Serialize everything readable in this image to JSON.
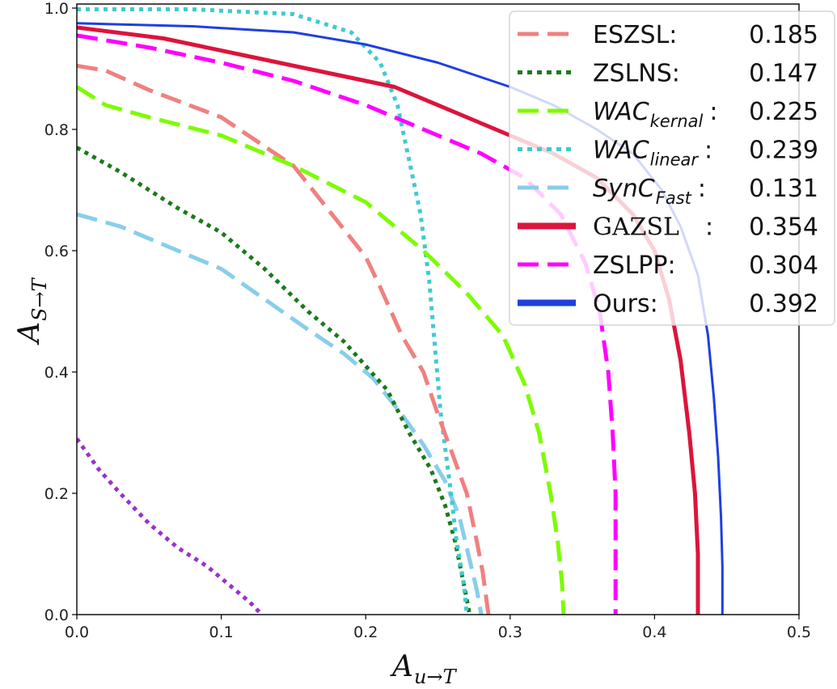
{
  "chart_data": {
    "type": "line",
    "title": "",
    "xlabel": {
      "main": "A",
      "sub": "u→T"
    },
    "ylabel": {
      "main": "A",
      "sub": "S→T"
    },
    "xlim": [
      0,
      0.5
    ],
    "ylim": [
      0,
      1.0
    ],
    "x_ticks": [
      "0.0",
      "0.1",
      "0.2",
      "0.3",
      "0.4",
      "0.5"
    ],
    "y_ticks": [
      "0.0",
      "0.2",
      "0.4",
      "0.6",
      "0.8",
      "1.0"
    ],
    "grid": false,
    "legend_position": "top-right",
    "series": [
      {
        "id": "eszsl",
        "name": "ESZSL:",
        "legend_main": "ESZSL:",
        "legend_sub": "",
        "legend_after": "",
        "score": "0.185",
        "color": "#f08080",
        "style": "dashed",
        "in_legend": true,
        "points": [
          [
            0.0,
            0.905
          ],
          [
            0.02,
            0.897
          ],
          [
            0.05,
            0.865
          ],
          [
            0.1,
            0.82
          ],
          [
            0.15,
            0.74
          ],
          [
            0.2,
            0.59
          ],
          [
            0.21,
            0.54
          ],
          [
            0.225,
            0.46
          ],
          [
            0.24,
            0.4
          ],
          [
            0.25,
            0.33
          ],
          [
            0.26,
            0.265
          ],
          [
            0.27,
            0.2
          ],
          [
            0.277,
            0.12
          ],
          [
            0.281,
            0.07
          ],
          [
            0.285,
            0.0
          ]
        ]
      },
      {
        "id": "zslns",
        "name": "ZSLNS:",
        "legend_main": "ZSLNS:",
        "legend_sub": "",
        "legend_after": "",
        "score": "0.147",
        "color": "#1a7a1a",
        "style": "dotted",
        "in_legend": true,
        "points": [
          [
            0.0,
            0.77
          ],
          [
            0.03,
            0.73
          ],
          [
            0.07,
            0.67
          ],
          [
            0.1,
            0.63
          ],
          [
            0.13,
            0.57
          ],
          [
            0.16,
            0.5
          ],
          [
            0.185,
            0.45
          ],
          [
            0.2,
            0.41
          ],
          [
            0.215,
            0.37
          ],
          [
            0.23,
            0.3
          ],
          [
            0.245,
            0.24
          ],
          [
            0.255,
            0.18
          ],
          [
            0.262,
            0.12
          ],
          [
            0.268,
            0.05
          ],
          [
            0.272,
            0.0
          ]
        ]
      },
      {
        "id": "wac-kernal",
        "name": "WAC kernal",
        "legend_main": "WAC",
        "legend_sub": "kernal",
        "legend_after": ":",
        "score": "0.225",
        "color": "#7cfc00",
        "style": "dashed",
        "in_legend": true,
        "points": [
          [
            0.0,
            0.87
          ],
          [
            0.02,
            0.84
          ],
          [
            0.05,
            0.82
          ],
          [
            0.1,
            0.79
          ],
          [
            0.15,
            0.74
          ],
          [
            0.2,
            0.68
          ],
          [
            0.24,
            0.6
          ],
          [
            0.27,
            0.53
          ],
          [
            0.295,
            0.46
          ],
          [
            0.31,
            0.38
          ],
          [
            0.32,
            0.3
          ],
          [
            0.328,
            0.2
          ],
          [
            0.333,
            0.12
          ],
          [
            0.336,
            0.05
          ],
          [
            0.337,
            0.0
          ]
        ]
      },
      {
        "id": "wac-linear",
        "name": "WAC linear",
        "legend_main": "WAC",
        "legend_sub": "linear",
        "legend_after": ":",
        "score": "0.239",
        "color": "#3ecbd0",
        "style": "dotted",
        "in_legend": true,
        "points": [
          [
            0.0,
            0.998
          ],
          [
            0.08,
            0.998
          ],
          [
            0.15,
            0.99
          ],
          [
            0.19,
            0.96
          ],
          [
            0.21,
            0.91
          ],
          [
            0.222,
            0.84
          ],
          [
            0.23,
            0.75
          ],
          [
            0.238,
            0.66
          ],
          [
            0.244,
            0.55
          ],
          [
            0.248,
            0.44
          ],
          [
            0.252,
            0.33
          ],
          [
            0.258,
            0.22
          ],
          [
            0.263,
            0.12
          ],
          [
            0.268,
            0.05
          ],
          [
            0.27,
            0.0
          ]
        ]
      },
      {
        "id": "sync-fast",
        "name": "SynC Fast",
        "legend_main": "SynC",
        "legend_sub": "Fast",
        "legend_after": ":",
        "score": "0.131",
        "color": "#87ceeb",
        "style": "dashed",
        "in_legend": true,
        "points": [
          [
            0.0,
            0.66
          ],
          [
            0.03,
            0.64
          ],
          [
            0.07,
            0.6
          ],
          [
            0.1,
            0.57
          ],
          [
            0.13,
            0.52
          ],
          [
            0.16,
            0.47
          ],
          [
            0.185,
            0.43
          ],
          [
            0.205,
            0.39
          ],
          [
            0.225,
            0.33
          ],
          [
            0.24,
            0.28
          ],
          [
            0.255,
            0.22
          ],
          [
            0.265,
            0.16
          ],
          [
            0.272,
            0.09
          ],
          [
            0.277,
            0.04
          ],
          [
            0.28,
            0.0
          ]
        ]
      },
      {
        "id": "gazsl",
        "name": "GAZSL",
        "legend_main": "GAZSL",
        "legend_sub": "",
        "legend_after": ":",
        "score": "0.354",
        "color": "#dc143c",
        "style": "solid",
        "in_legend": true,
        "points": [
          [
            0.0,
            0.968
          ],
          [
            0.06,
            0.95
          ],
          [
            0.12,
            0.92
          ],
          [
            0.18,
            0.89
          ],
          [
            0.22,
            0.87
          ],
          [
            0.26,
            0.83
          ],
          [
            0.3,
            0.79
          ],
          [
            0.33,
            0.76
          ],
          [
            0.36,
            0.72
          ],
          [
            0.385,
            0.66
          ],
          [
            0.4,
            0.6
          ],
          [
            0.41,
            0.52
          ],
          [
            0.418,
            0.42
          ],
          [
            0.424,
            0.3
          ],
          [
            0.428,
            0.2
          ],
          [
            0.43,
            0.1
          ],
          [
            0.43,
            0.0
          ]
        ]
      },
      {
        "id": "zslpp",
        "name": "ZSLPP:",
        "legend_main": "ZSLPP:",
        "legend_sub": "",
        "legend_after": "",
        "score": "0.304",
        "color": "#ff00ff",
        "style": "dashed",
        "in_legend": true,
        "points": [
          [
            0.0,
            0.955
          ],
          [
            0.05,
            0.935
          ],
          [
            0.1,
            0.91
          ],
          [
            0.15,
            0.88
          ],
          [
            0.2,
            0.84
          ],
          [
            0.25,
            0.79
          ],
          [
            0.28,
            0.76
          ],
          [
            0.31,
            0.72
          ],
          [
            0.335,
            0.66
          ],
          [
            0.352,
            0.58
          ],
          [
            0.362,
            0.5
          ],
          [
            0.368,
            0.4
          ],
          [
            0.371,
            0.3
          ],
          [
            0.373,
            0.2
          ],
          [
            0.373,
            0.1
          ],
          [
            0.373,
            0.0
          ]
        ]
      },
      {
        "id": "ours",
        "name": "Ours:",
        "legend_main": "Ours:",
        "legend_sub": "",
        "legend_after": "",
        "score": "0.392",
        "color": "#1f3fe0",
        "style": "solid",
        "in_legend": true,
        "points": [
          [
            0.0,
            0.975
          ],
          [
            0.08,
            0.97
          ],
          [
            0.15,
            0.96
          ],
          [
            0.2,
            0.94
          ],
          [
            0.25,
            0.91
          ],
          [
            0.3,
            0.87
          ],
          [
            0.33,
            0.84
          ],
          [
            0.36,
            0.8
          ],
          [
            0.385,
            0.76
          ],
          [
            0.405,
            0.7
          ],
          [
            0.418,
            0.64
          ],
          [
            0.43,
            0.56
          ],
          [
            0.437,
            0.46
          ],
          [
            0.441,
            0.36
          ],
          [
            0.444,
            0.26
          ],
          [
            0.446,
            0.16
          ],
          [
            0.447,
            0.08
          ],
          [
            0.447,
            0.0
          ]
        ]
      },
      {
        "id": "extra-purple",
        "name": "",
        "legend_main": "",
        "legend_sub": "",
        "legend_after": "",
        "score": "",
        "color": "#9932cc",
        "style": "dotted",
        "in_legend": false,
        "points": [
          [
            0.0,
            0.29
          ],
          [
            0.015,
            0.24
          ],
          [
            0.03,
            0.2
          ],
          [
            0.05,
            0.15
          ],
          [
            0.07,
            0.11
          ],
          [
            0.09,
            0.08
          ],
          [
            0.11,
            0.04
          ],
          [
            0.12,
            0.02
          ],
          [
            0.128,
            0.0
          ]
        ]
      }
    ]
  }
}
